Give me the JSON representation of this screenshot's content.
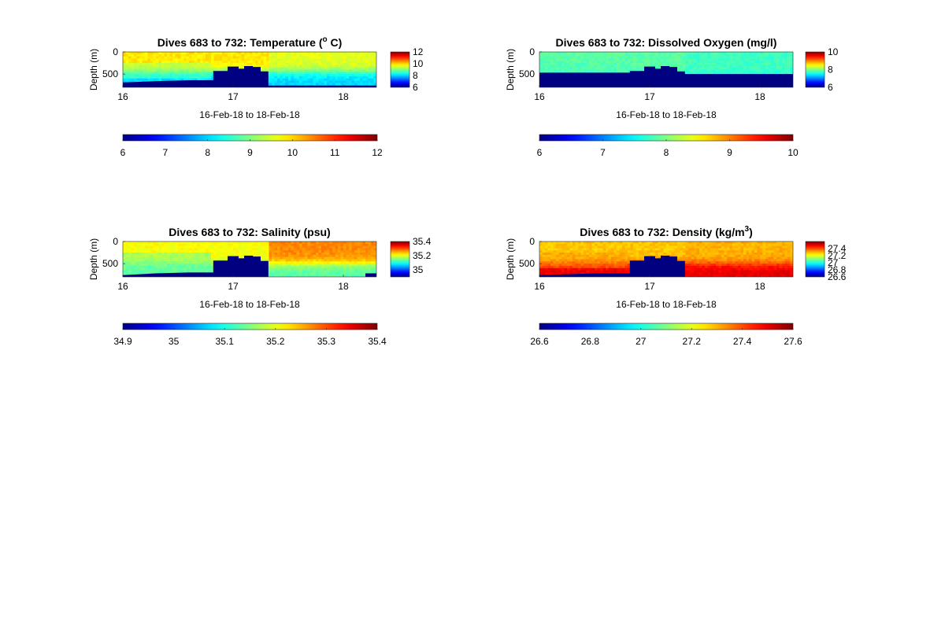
{
  "figure": {
    "date_range_label": "16-Feb-18 to 18-Feb-18",
    "ylabel": "Depth (m)"
  },
  "chart_data": [
    {
      "type": "heatmap",
      "title": "Dives 683 to 732: Temperature (",
      "title_sup": "o",
      "title_after": " C)",
      "xlabel": "16-Feb-18 to 18-Feb-18",
      "ylabel": "Depth (m)",
      "x_ticks": [
        "16",
        "17",
        "18"
      ],
      "y_ticks": [
        "0",
        "500"
      ],
      "xlim": [
        16.0,
        18.3
      ],
      "ylim": [
        0,
        800
      ],
      "clim": [
        6,
        12
      ],
      "colormap": "jet",
      "small_colorbar_ticks": [
        "12",
        "10",
        "8",
        "6"
      ],
      "big_colorbar_ticks": [
        "6",
        "7",
        "8",
        "9",
        "10",
        "11",
        "12"
      ],
      "field": {
        "surface_value": 9.9,
        "bottom_value": 8.0,
        "transition_depth": 450,
        "left_mid_value": 8.9,
        "right_surface_value": 9.6
      },
      "bottom_fill_value": 6,
      "bottom_profile": [
        {
          "x": 16.0,
          "depth": 690
        },
        {
          "x": 16.3,
          "depth": 660
        },
        {
          "x": 16.6,
          "depth": 640
        },
        {
          "x": 16.82,
          "depth": 640
        },
        {
          "x": 16.82,
          "depth": 430
        },
        {
          "x": 16.95,
          "depth": 430
        },
        {
          "x": 16.95,
          "depth": 330
        },
        {
          "x": 17.05,
          "depth": 330
        },
        {
          "x": 17.05,
          "depth": 380
        },
        {
          "x": 17.1,
          "depth": 380
        },
        {
          "x": 17.1,
          "depth": 320
        },
        {
          "x": 17.18,
          "depth": 320
        },
        {
          "x": 17.18,
          "depth": 340
        },
        {
          "x": 17.25,
          "depth": 340
        },
        {
          "x": 17.25,
          "depth": 440
        },
        {
          "x": 17.32,
          "depth": 440
        },
        {
          "x": 17.32,
          "depth": 760
        },
        {
          "x": 18.3,
          "depth": 760
        }
      ]
    },
    {
      "type": "heatmap",
      "title": "Dives 683 to 732: Dissolved Oxygen (mg/l)",
      "title_sup": "",
      "title_after": "",
      "xlabel": "16-Feb-18 to 18-Feb-18",
      "ylabel": "Depth (m)",
      "x_ticks": [
        "16",
        "17",
        "18"
      ],
      "y_ticks": [
        "0",
        "500"
      ],
      "xlim": [
        16.0,
        18.3
      ],
      "ylim": [
        0,
        800
      ],
      "clim": [
        6,
        10
      ],
      "colormap": "jet",
      "small_colorbar_ticks": [
        "10",
        "8",
        "6"
      ],
      "big_colorbar_ticks": [
        "6",
        "7",
        "8",
        "9",
        "10"
      ],
      "field": {
        "surface_value": 7.85,
        "bottom_value": 7.55,
        "transition_depth": 500,
        "left_mid_value": 7.8,
        "right_surface_value": 7.75
      },
      "bottom_fill_value": 6,
      "bottom_profile": [
        {
          "x": 16.0,
          "depth": 470
        },
        {
          "x": 16.82,
          "depth": 470
        },
        {
          "x": 16.82,
          "depth": 430
        },
        {
          "x": 16.95,
          "depth": 430
        },
        {
          "x": 16.95,
          "depth": 330
        },
        {
          "x": 17.05,
          "depth": 330
        },
        {
          "x": 17.05,
          "depth": 380
        },
        {
          "x": 17.1,
          "depth": 380
        },
        {
          "x": 17.1,
          "depth": 320
        },
        {
          "x": 17.18,
          "depth": 320
        },
        {
          "x": 17.18,
          "depth": 340
        },
        {
          "x": 17.25,
          "depth": 340
        },
        {
          "x": 17.25,
          "depth": 440
        },
        {
          "x": 17.32,
          "depth": 440
        },
        {
          "x": 17.32,
          "depth": 500
        },
        {
          "x": 18.3,
          "depth": 500
        }
      ]
    },
    {
      "type": "heatmap",
      "title": "Dives 683 to 732: Salinity (psu)",
      "title_sup": "",
      "title_after": "",
      "xlabel": "16-Feb-18 to 18-Feb-18",
      "ylabel": "Depth (m)",
      "x_ticks": [
        "16",
        "17",
        "18"
      ],
      "y_ticks": [
        "0",
        "500"
      ],
      "xlim": [
        16.0,
        18.3
      ],
      "ylim": [
        0,
        800
      ],
      "clim": [
        34.9,
        35.4
      ],
      "colormap": "jet",
      "small_colorbar_ticks": [
        "35.4",
        "35.2",
        "35"
      ],
      "big_colorbar_ticks": [
        "34.9",
        "35",
        "35.1",
        "35.2",
        "35.3",
        "35.4"
      ],
      "field": {
        "surface_value": 35.21,
        "bottom_value": 35.13,
        "transition_depth": 500,
        "left_mid_value": 35.12,
        "right_surface_value": 35.27
      },
      "bottom_fill_value": 34.9,
      "bottom_profile": [
        {
          "x": 16.0,
          "depth": 760
        },
        {
          "x": 16.3,
          "depth": 720
        },
        {
          "x": 16.6,
          "depth": 700
        },
        {
          "x": 16.82,
          "depth": 700
        },
        {
          "x": 16.82,
          "depth": 430
        },
        {
          "x": 16.95,
          "depth": 430
        },
        {
          "x": 16.95,
          "depth": 330
        },
        {
          "x": 17.05,
          "depth": 330
        },
        {
          "x": 17.05,
          "depth": 380
        },
        {
          "x": 17.1,
          "depth": 380
        },
        {
          "x": 17.1,
          "depth": 320
        },
        {
          "x": 17.18,
          "depth": 320
        },
        {
          "x": 17.18,
          "depth": 340
        },
        {
          "x": 17.25,
          "depth": 340
        },
        {
          "x": 17.25,
          "depth": 440
        },
        {
          "x": 17.32,
          "depth": 440
        },
        {
          "x": 17.32,
          "depth": 800
        },
        {
          "x": 18.2,
          "depth": 800
        },
        {
          "x": 18.2,
          "depth": 720
        },
        {
          "x": 18.3,
          "depth": 720
        }
      ]
    },
    {
      "type": "heatmap",
      "title": "Dives 683 to 732: Density (kg/m",
      "title_sup": "3",
      "title_after": ")",
      "xlabel": "16-Feb-18 to 18-Feb-18",
      "ylabel": "Depth (m)",
      "x_ticks": [
        "16",
        "17",
        "18"
      ],
      "y_ticks": [
        "0",
        "500"
      ],
      "xlim": [
        16.0,
        18.3
      ],
      "ylim": [
        0,
        800
      ],
      "clim": [
        26.6,
        27.6
      ],
      "colormap": "jet",
      "small_colorbar_ticks": [
        "27.4",
        "27.2",
        "27",
        "26.8",
        "26.6"
      ],
      "big_colorbar_ticks": [
        "26.6",
        "26.8",
        "27",
        "27.2",
        "27.4",
        "27.6"
      ],
      "field": {
        "surface_value": 27.28,
        "bottom_value": 27.5,
        "transition_depth": 500,
        "left_mid_value": 27.33,
        "right_surface_value": 27.3
      },
      "bottom_fill_value": 26.6,
      "bottom_profile": [
        {
          "x": 16.0,
          "depth": 760
        },
        {
          "x": 16.5,
          "depth": 720
        },
        {
          "x": 16.82,
          "depth": 720
        },
        {
          "x": 16.82,
          "depth": 430
        },
        {
          "x": 16.95,
          "depth": 430
        },
        {
          "x": 16.95,
          "depth": 330
        },
        {
          "x": 17.05,
          "depth": 330
        },
        {
          "x": 17.05,
          "depth": 380
        },
        {
          "x": 17.1,
          "depth": 380
        },
        {
          "x": 17.1,
          "depth": 320
        },
        {
          "x": 17.18,
          "depth": 320
        },
        {
          "x": 17.18,
          "depth": 340
        },
        {
          "x": 17.25,
          "depth": 340
        },
        {
          "x": 17.25,
          "depth": 440
        },
        {
          "x": 17.32,
          "depth": 440
        },
        {
          "x": 17.32,
          "depth": 800
        },
        {
          "x": 18.3,
          "depth": 800
        }
      ]
    }
  ]
}
